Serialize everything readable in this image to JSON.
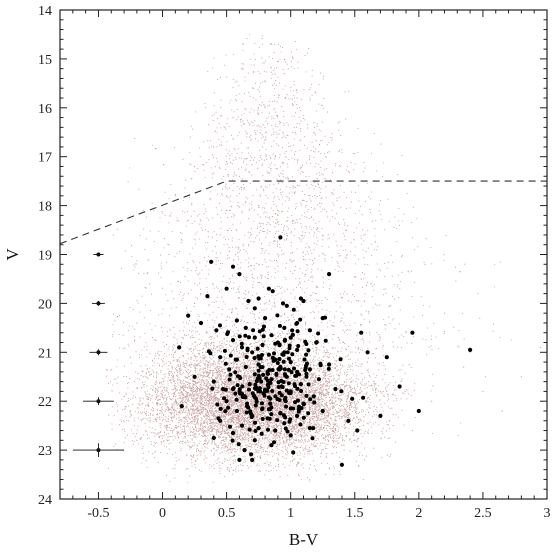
{
  "chart_data": {
    "type": "scatter",
    "title": "",
    "xlabel": "B-V",
    "ylabel": "V",
    "xlim": [
      -0.8,
      3.0
    ],
    "ylim": [
      24,
      14
    ],
    "y_inverted": true,
    "x_ticks": [
      -0.5,
      0,
      0.5,
      1,
      1.5,
      2,
      2.5,
      3
    ],
    "x_tick_labels": [
      "-0.5",
      "0",
      "0.5",
      "1",
      "1.5",
      "2",
      "2.5",
      "3"
    ],
    "y_ticks": [
      14,
      15,
      16,
      17,
      18,
      19,
      20,
      21,
      22,
      23,
      24
    ],
    "y_tick_labels": [
      "14",
      "15",
      "16",
      "17",
      "18",
      "19",
      "20",
      "21",
      "22",
      "23",
      "24"
    ],
    "grid": false,
    "legend": "none",
    "colors": {
      "field_stars": "#c9a0a0",
      "members": "#000000",
      "selection_line": "#333333"
    },
    "selection_line": {
      "style": "dashed",
      "x": [
        -0.8,
        0.5,
        3.0
      ],
      "y": [
        18.78,
        17.5,
        17.5
      ]
    },
    "error_bars": [
      {
        "x": -0.5,
        "y": 19.0,
        "xerr": 0.04,
        "yerr": 0.02
      },
      {
        "x": -0.5,
        "y": 20.0,
        "xerr": 0.05,
        "yerr": 0.03
      },
      {
        "x": -0.5,
        "y": 21.0,
        "xerr": 0.07,
        "yerr": 0.04
      },
      {
        "x": -0.5,
        "y": 22.0,
        "xerr": 0.12,
        "yerr": 0.06
      },
      {
        "x": -0.5,
        "y": 23.0,
        "xerr": 0.2,
        "yerr": 0.12
      }
    ],
    "series": [
      {
        "marker": "small-dot",
        "description_density": "dense field population concentrated at B-V 0 to 1.5, V 21 to 23; sparse plume up to V 14.5 around B-V 0.8",
        "points": [
          [
            0.85,
            14.7
          ],
          [
            0.62,
            15.1
          ],
          [
            0.95,
            15.3
          ],
          [
            0.71,
            15.6
          ],
          [
            1.05,
            15.8
          ],
          [
            0.8,
            16.0
          ],
          [
            0.55,
            16.2
          ],
          [
            0.92,
            16.3
          ],
          [
            1.18,
            16.5
          ],
          [
            0.68,
            16.6
          ],
          [
            0.4,
            16.8
          ],
          [
            1.3,
            16.9
          ],
          [
            0.88,
            17.0
          ],
          [
            0.25,
            17.2
          ],
          [
            1.45,
            17.3
          ],
          [
            0.6,
            17.4
          ],
          [
            1.02,
            17.6
          ],
          [
            0.1,
            17.8
          ],
          [
            1.7,
            17.9
          ],
          [
            0.75,
            18.0
          ],
          [
            0.2,
            18.3
          ],
          [
            1.85,
            18.4
          ],
          [
            0.45,
            18.6
          ],
          [
            1.25,
            18.7
          ],
          [
            0.05,
            19.0
          ],
          [
            2.05,
            19.2
          ],
          [
            -0.1,
            19.6
          ],
          [
            1.55,
            19.5
          ],
          [
            0.3,
            19.8
          ],
          [
            2.2,
            20.2
          ],
          [
            -0.2,
            20.4
          ],
          [
            1.9,
            20.6
          ],
          [
            0.15,
            20.8
          ],
          [
            -0.25,
            21.1
          ],
          [
            2.35,
            21.3
          ],
          [
            1.65,
            21.6
          ],
          [
            -0.3,
            21.9
          ],
          [
            2.1,
            22.0
          ],
          [
            0.0,
            22.4
          ],
          [
            1.8,
            22.5
          ],
          [
            -0.2,
            22.8
          ],
          [
            1.4,
            22.9
          ],
          [
            0.4,
            23.1
          ],
          [
            0.9,
            23.2
          ],
          [
            1.1,
            23.0
          ],
          [
            0.65,
            22.9
          ],
          [
            2.5,
            21.8
          ],
          [
            2.65,
            22.2
          ],
          [
            2.8,
            21.5
          ],
          [
            2.95,
            20.9
          ],
          [
            -0.35,
            22.2
          ],
          [
            -0.15,
            21.5
          ],
          [
            0.1,
            22.0
          ],
          [
            0.35,
            21.8
          ],
          [
            0.55,
            22.3
          ],
          [
            0.75,
            21.9
          ],
          [
            0.95,
            22.2
          ],
          [
            1.15,
            21.7
          ],
          [
            1.35,
            22.0
          ],
          [
            1.55,
            22.4
          ],
          [
            1.75,
            21.8
          ],
          [
            1.95,
            22.6
          ],
          [
            0.2,
            22.7
          ],
          [
            0.5,
            22.6
          ],
          [
            0.8,
            22.7
          ],
          [
            1.2,
            22.6
          ],
          [
            1.5,
            22.8
          ],
          [
            0.05,
            21.4
          ],
          [
            0.3,
            21.2
          ],
          [
            0.6,
            21.0
          ],
          [
            1.0,
            20.8
          ],
          [
            1.3,
            21.1
          ],
          [
            1.6,
            21.2
          ],
          [
            1.4,
            20.3
          ],
          [
            0.25,
            20.0
          ],
          [
            0.7,
            19.4
          ],
          [
            1.1,
            19.1
          ],
          [
            0.9,
            18.2
          ],
          [
            0.5,
            17.1
          ],
          [
            1.15,
            17.8
          ]
        ]
      },
      {
        "marker": "large-dot",
        "description_density": "selected stars concentrated at B-V 0.4 to 1.3, V 20 to 23",
        "points": [
          [
            0.92,
            18.65
          ],
          [
            0.38,
            19.15
          ],
          [
            0.55,
            19.25
          ],
          [
            0.6,
            19.4
          ],
          [
            1.3,
            19.4
          ],
          [
            0.5,
            19.7
          ],
          [
            0.35,
            19.85
          ],
          [
            0.83,
            19.7
          ],
          [
            0.86,
            19.75
          ],
          [
            0.75,
            19.9
          ],
          [
            1.08,
            19.9
          ],
          [
            1.1,
            19.95
          ],
          [
            0.67,
            19.95
          ],
          [
            0.94,
            20.0
          ],
          [
            0.97,
            20.05
          ],
          [
            0.72,
            20.1
          ],
          [
            0.2,
            20.25
          ],
          [
            1.25,
            20.3
          ],
          [
            0.8,
            20.3
          ],
          [
            0.58,
            20.35
          ],
          [
            1.05,
            20.4
          ],
          [
            0.3,
            20.4
          ],
          [
            0.95,
            20.5
          ],
          [
            0.65,
            20.5
          ],
          [
            0.42,
            20.55
          ],
          [
            1.15,
            20.55
          ],
          [
            1.55,
            20.6
          ],
          [
            0.85,
            20.65
          ],
          [
            0.72,
            20.7
          ],
          [
            1.0,
            20.7
          ],
          [
            0.55,
            20.75
          ],
          [
            0.9,
            20.8
          ],
          [
            1.2,
            20.8
          ],
          [
            0.78,
            20.85
          ],
          [
            0.62,
            20.9
          ],
          [
            0.13,
            20.9
          ],
          [
            1.05,
            20.95
          ],
          [
            0.95,
            21.0
          ],
          [
            0.7,
            21.0
          ],
          [
            0.83,
            21.05
          ],
          [
            1.12,
            21.05
          ],
          [
            0.45,
            21.1
          ],
          [
            1.75,
            21.1
          ],
          [
            0.58,
            21.15
          ],
          [
            0.88,
            21.15
          ],
          [
            1.0,
            21.2
          ],
          [
            0.75,
            21.25
          ],
          [
            1.3,
            21.25
          ],
          [
            0.92,
            21.3
          ],
          [
            0.65,
            21.3
          ],
          [
            0.52,
            21.35
          ],
          [
            1.15,
            21.35
          ],
          [
            0.82,
            21.4
          ],
          [
            1.05,
            21.4
          ],
          [
            0.72,
            21.45
          ],
          [
            0.97,
            21.5
          ],
          [
            0.6,
            21.5
          ],
          [
            1.22,
            21.55
          ],
          [
            0.85,
            21.55
          ],
          [
            0.4,
            21.6
          ],
          [
            0.77,
            21.6
          ],
          [
            1.08,
            21.65
          ],
          [
            0.68,
            21.65
          ],
          [
            0.93,
            21.7
          ],
          [
            0.55,
            21.75
          ],
          [
            1.35,
            21.75
          ],
          [
            0.8,
            21.8
          ],
          [
            1.0,
            21.8
          ],
          [
            0.62,
            21.85
          ],
          [
            0.88,
            21.9
          ],
          [
            1.18,
            21.9
          ],
          [
            0.73,
            21.95
          ],
          [
            1.48,
            21.95
          ],
          [
            0.96,
            22.0
          ],
          [
            0.5,
            22.0
          ],
          [
            0.84,
            22.05
          ],
          [
            1.1,
            22.05
          ],
          [
            0.66,
            22.1
          ],
          [
            1.0,
            22.15
          ],
          [
            0.78,
            22.15
          ],
          [
            1.25,
            22.2
          ],
          [
            0.58,
            22.2
          ],
          [
            0.92,
            22.25
          ],
          [
            0.7,
            22.3
          ],
          [
            1.05,
            22.3
          ],
          [
            0.82,
            22.35
          ],
          [
            0.45,
            22.4
          ],
          [
            1.45,
            22.4
          ],
          [
            0.95,
            22.45
          ],
          [
            0.62,
            22.5
          ],
          [
            0.75,
            22.55
          ],
          [
            1.15,
            22.55
          ],
          [
            0.88,
            22.6
          ],
          [
            1.52,
            22.6
          ],
          [
            0.55,
            22.65
          ],
          [
            1.0,
            22.7
          ],
          [
            0.4,
            22.75
          ],
          [
            0.72,
            22.8
          ],
          [
            0.85,
            22.9
          ],
          [
            0.64,
            23.0
          ],
          [
            1.02,
            23.05
          ],
          [
            0.6,
            23.2
          ],
          [
            0.7,
            23.2
          ],
          [
            1.4,
            23.3
          ],
          [
            2.4,
            20.95
          ],
          [
            2.0,
            22.2
          ],
          [
            1.6,
            21.0
          ],
          [
            1.7,
            22.3
          ],
          [
            1.85,
            21.7
          ],
          [
            0.25,
            21.5
          ],
          [
            0.15,
            22.1
          ],
          [
            1.95,
            20.6
          ]
        ]
      }
    ]
  }
}
